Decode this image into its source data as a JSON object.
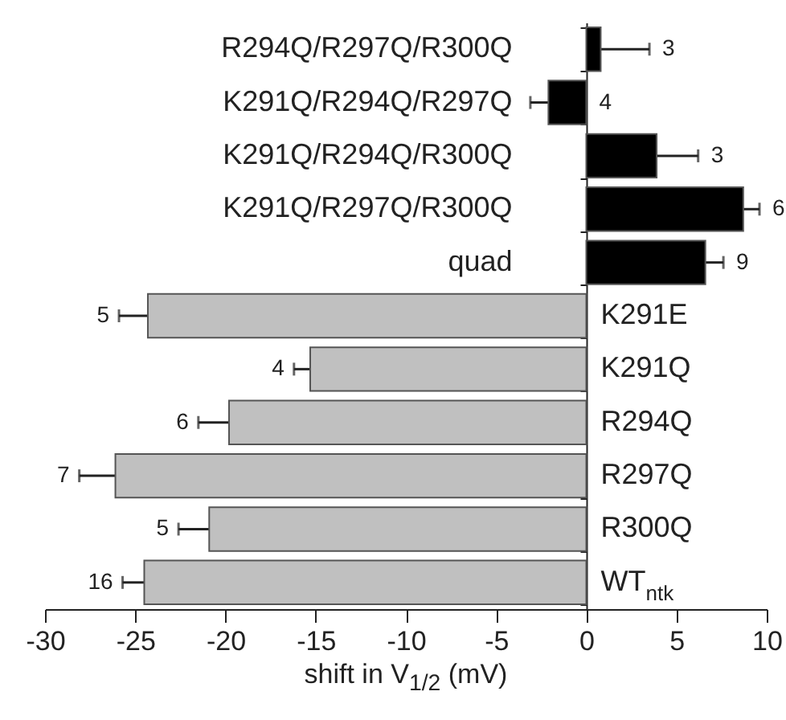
{
  "chart_data": {
    "type": "bar",
    "orientation": "horizontal",
    "xlabel": "shift in V$_{1/2}$ (mV)",
    "categories": [
      "R294Q/R297Q/R300Q",
      "K291Q/R294Q/R297Q",
      "K291Q/R294Q/R300Q",
      "K291Q/R297Q/R300Q",
      "quad",
      "K291E",
      "K291Q",
      "R294Q",
      "R297Q",
      "R300Q",
      "WT$_{ntk}$"
    ],
    "values": [
      0.8,
      -2.1,
      3.9,
      8.7,
      6.6,
      -24.3,
      -15.3,
      -19.8,
      -26.1,
      -20.9,
      -24.5
    ],
    "errors": [
      2.7,
      1.0,
      2.3,
      0.9,
      1.0,
      1.6,
      0.9,
      1.7,
      2.0,
      1.7,
      1.2
    ],
    "colors": [
      "#000000",
      "#000000",
      "#000000",
      "#000000",
      "#000000",
      "#c0c0c0",
      "#c0c0c0",
      "#c0c0c0",
      "#c0c0c0",
      "#c0c0c0",
      "#c0c0c0"
    ],
    "xlim": [
      -30,
      10
    ],
    "xticks": [
      -30,
      -25,
      -20,
      -15,
      -10,
      -5,
      0,
      5,
      10
    ],
    "grid": false,
    "annotations": [
      {
        "text": "3",
        "x": 3.5,
        "y": "R294Q/R297Q/R300Q"
      },
      {
        "text": "4",
        "x": 0,
        "y": "K291Q/R294Q/R297Q"
      },
      {
        "text": "3",
        "x": 6.2,
        "y": "K291Q/R294Q/R300Q"
      },
      {
        "text": "6",
        "x": 9.6,
        "y": "K291Q/R297Q/R300Q"
      },
      {
        "text": "9",
        "x": 7.6,
        "y": "quad"
      },
      {
        "text": "5",
        "x": -25.9,
        "y": "K291E"
      },
      {
        "text": "4",
        "x": -16.2,
        "y": "K291Q"
      },
      {
        "text": "6",
        "x": -21.5,
        "y": "R294Q"
      },
      {
        "text": "7",
        "x": -28.1,
        "y": "R297Q"
      },
      {
        "text": "5",
        "x": -22.6,
        "y": "R300Q"
      },
      {
        "text": "16",
        "x": -25.7,
        "y": "WT$_{ntk}$"
      }
    ]
  }
}
